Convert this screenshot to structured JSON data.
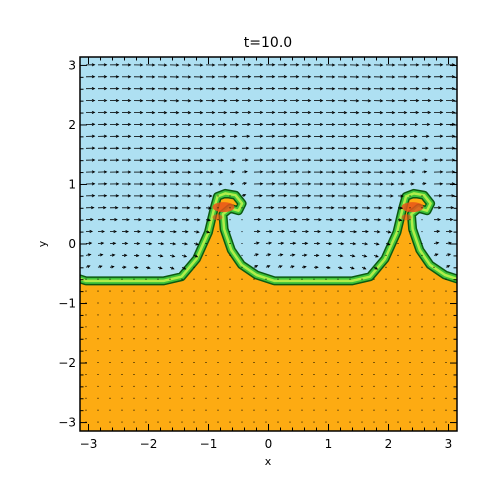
{
  "chart_data": {
    "type": "heatmap",
    "title": "t=10.0",
    "xlabel": "x",
    "ylabel": "y",
    "xlim": [
      -3.14159,
      3.14159
    ],
    "ylim": [
      -3.14159,
      3.14159
    ],
    "xticks": [
      -3,
      -2,
      -1,
      0,
      1,
      2,
      3
    ],
    "yticks": [
      -3,
      -2,
      -1,
      0,
      1,
      2,
      3
    ],
    "xtick_labels": [
      "−3",
      "−2",
      "−1",
      "0",
      "1",
      "2",
      "3"
    ],
    "ytick_labels": [
      "−3",
      "−2",
      "−1",
      "0",
      "1",
      "2",
      "3"
    ],
    "colors": {
      "upper_fluid": "#aee0f2",
      "lower_fluid": "#fdab12",
      "interface_outer": "#0b5a12",
      "interface_mid": "#3ec23a",
      "interface_inner": "#b0ee4a",
      "vortex_core": "#e8541a",
      "vector": "#000000",
      "frame": "#000000"
    },
    "interface": {
      "mean_y": -0.25,
      "trough_y": -0.62,
      "crest_y": 0.85,
      "crest_x": [
        -0.75,
        2.4
      ],
      "wavelength": 3.14159
    },
    "vector_field": {
      "description": "velocity arrows",
      "upper_speed": 1.0,
      "lower_speed": 0.05
    }
  }
}
